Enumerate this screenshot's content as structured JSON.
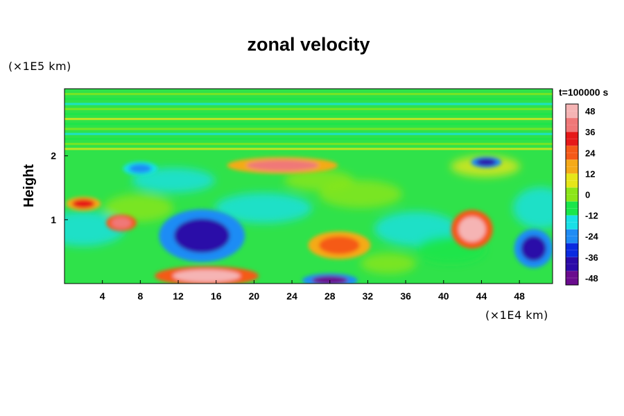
{
  "chart_data": {
    "type": "heatmap",
    "title": "zonal velocity",
    "ylabel": "Height",
    "y_unit": "(×1E5 km)",
    "x_unit": "(×1E4 km)",
    "time_label": "t=100000 s",
    "xlim": [
      0,
      51.5
    ],
    "ylim": [
      0,
      3.05
    ],
    "x_ticks": [
      4,
      8,
      12,
      16,
      20,
      24,
      28,
      32,
      36,
      40,
      44,
      48
    ],
    "y_ticks": [
      1,
      2
    ],
    "colorbar": {
      "ticks": [
        48,
        36,
        24,
        12,
        0,
        -12,
        -24,
        -36,
        -48
      ],
      "range": [
        -52,
        52
      ],
      "colors": [
        "#6a0c8e",
        "#2b0aa8",
        "#0a2ae0",
        "#1f8cf5",
        "#19e0e6",
        "#19e64a",
        "#8ce619",
        "#e6e619",
        "#f5aa19",
        "#f55a19",
        "#e61919",
        "#f07878",
        "#f5b4b4"
      ]
    },
    "features": [
      {
        "x": 14.5,
        "y": 0.75,
        "value": -42
      },
      {
        "x": 43,
        "y": 0.85,
        "value": 44
      },
      {
        "x": 49.5,
        "y": 0.55,
        "value": -38
      },
      {
        "x": 29,
        "y": 0.6,
        "value": 24
      },
      {
        "x": 23,
        "y": 1.85,
        "value": 36
      },
      {
        "x": 6,
        "y": 0.95,
        "value": 38
      },
      {
        "x": 15,
        "y": 0.12,
        "value": 46
      },
      {
        "x": 28,
        "y": 0.05,
        "value": -48
      },
      {
        "x": 44.5,
        "y": 1.9,
        "value": -44
      },
      {
        "x": 8,
        "y": 1.8,
        "value": -22
      },
      {
        "x": 2,
        "y": 1.25,
        "value": 32
      }
    ]
  }
}
